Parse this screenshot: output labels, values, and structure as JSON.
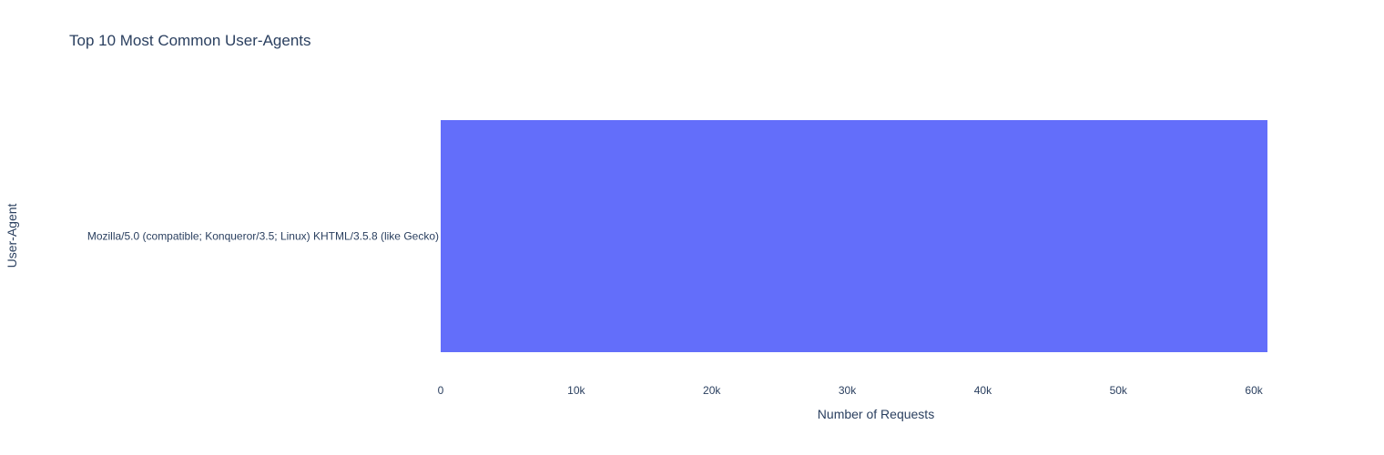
{
  "chart_data": {
    "type": "bar",
    "orientation": "horizontal",
    "title": "Top 10 Most Common User-Agents",
    "xlabel": "Number of Requests",
    "ylabel": "User-Agent",
    "categories": [
      "Mozilla/5.0 (compatible; Konqueror/3.5; Linux) KHTML/3.5.8 (like Gecko)"
    ],
    "values": [
      61000
    ],
    "xlim": [
      0,
      61000
    ],
    "xticks": [
      0,
      10000,
      20000,
      30000,
      40000,
      50000,
      60000
    ],
    "xtick_labels": [
      "0",
      "10k",
      "20k",
      "30k",
      "40k",
      "50k",
      "60k"
    ],
    "grid": false,
    "legend": "none",
    "bar_color": "#636efa",
    "text_color": "#2a3f5f",
    "background_color": "#ffffff"
  }
}
